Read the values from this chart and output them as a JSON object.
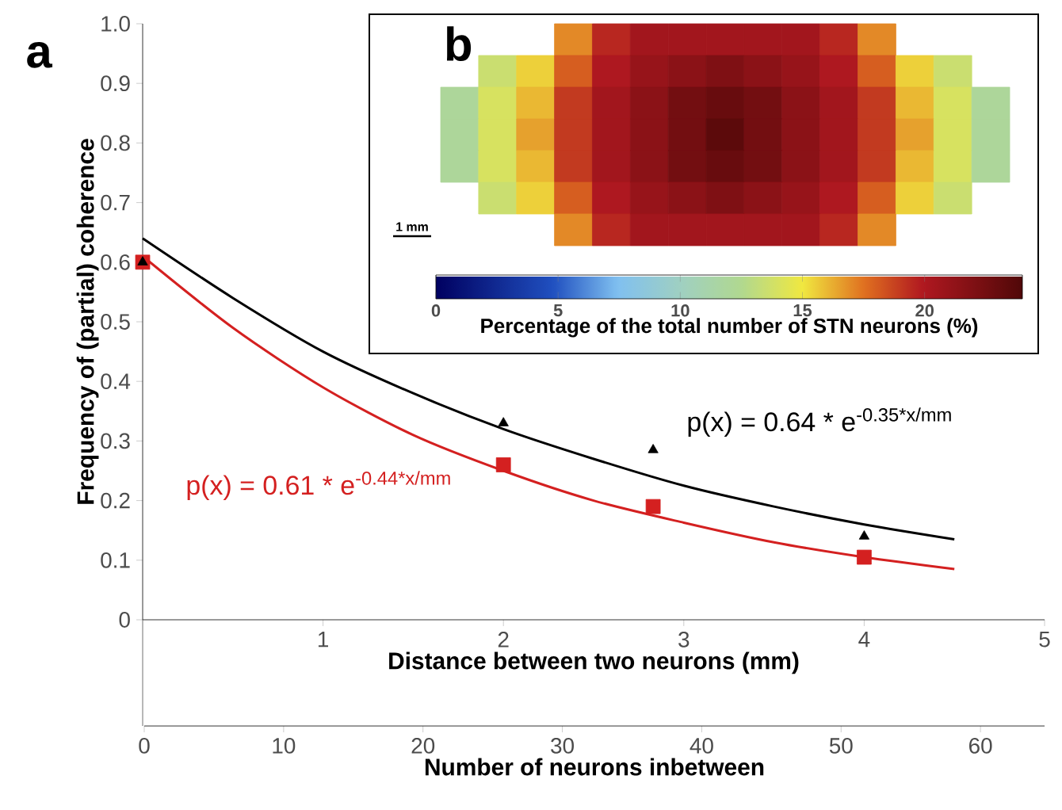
{
  "chart_data": [
    {
      "type": "line",
      "title": "a",
      "xlabel": "Distance between two neurons (mm)",
      "ylabel": "Frequency of (partial) coherence",
      "x2label": "Number of  neurons inbetween",
      "xlim": [
        0,
        5
      ],
      "xticks": [
        1,
        2,
        3,
        4,
        5
      ],
      "ylim": [
        0,
        1
      ],
      "yticks": [
        {
          "value": 0,
          "label": "0"
        },
        0.1,
        0.2,
        0.3,
        0.4,
        0.5,
        0.6,
        0.7,
        0.8,
        0.9,
        {
          "value": 1,
          "label": "1.0"
        }
      ],
      "x2lim": [
        0,
        64.6
      ],
      "x2ticks": [
        0,
        10,
        20,
        30,
        40,
        50,
        60
      ],
      "series": [
        {
          "type": "line",
          "color": "#000000",
          "marker": "none",
          "x": [
            0,
            0.5,
            1,
            1.5,
            2,
            2.5,
            3,
            3.5,
            4,
            4.5
          ],
          "values": [
            0.64,
            0.54,
            0.45,
            0.38,
            0.32,
            0.27,
            0.225,
            0.19,
            0.16,
            0.135
          ]
        },
        {
          "type": "line",
          "color": "#d42020",
          "marker": "none",
          "x": [
            0,
            0.5,
            1,
            1.5,
            2,
            2.5,
            3,
            3.5,
            4,
            4.5
          ],
          "values": [
            0.61,
            0.49,
            0.39,
            0.31,
            0.25,
            0.2,
            0.163,
            0.13,
            0.105,
            0.085
          ]
        },
        {
          "type": "scatter",
          "color": "#d42020",
          "marker": "square",
          "x": [
            0,
            2,
            2.83,
            4
          ],
          "values": [
            0.6,
            0.26,
            0.19,
            0.105
          ]
        },
        {
          "type": "scatter",
          "color": "#000000",
          "marker": "triangle",
          "x": [
            0,
            2,
            2.83,
            4
          ],
          "values": [
            0.6,
            0.33,
            0.285,
            0.14
          ]
        }
      ],
      "annotations": [
        "p(x) = 0.64 * e$^{-0.35*x/mm}$",
        "p(x) = 0.61 * e$^{-0.44*x/mm}$"
      ]
    },
    {
      "type": "heatmap",
      "title": "b",
      "clabel": "Percentage of the total number of STN neurons (%)",
      "tick_labels": false,
      "categories": [
        null,
        null,
        null,
        null,
        null,
        null,
        null,
        null,
        null,
        null,
        null,
        null,
        null,
        null,
        null
      ],
      "y_categories": [
        null,
        null,
        null,
        null,
        null,
        null,
        null
      ],
      "cells": [
        [
          null,
          null,
          null,
          17,
          19.5,
          20.5,
          20.5,
          20.5,
          20.5,
          20.5,
          19.5,
          17,
          null,
          null,
          null
        ],
        [
          null,
          13.5,
          15.5,
          18,
          20,
          21,
          21.5,
          22,
          21.5,
          21,
          20,
          18,
          15.5,
          13.5,
          null
        ],
        [
          12,
          14,
          16,
          19,
          20.5,
          21.5,
          22.5,
          23,
          22.5,
          21.5,
          20.5,
          19,
          16,
          14,
          12
        ],
        [
          12,
          14,
          16.5,
          19,
          20.5,
          21.5,
          22.5,
          23.5,
          22.5,
          21.5,
          20.5,
          19,
          16.5,
          14,
          12
        ],
        [
          12,
          14,
          16,
          19,
          20.5,
          21.5,
          22.5,
          23,
          22.5,
          21.5,
          20.5,
          19,
          16,
          14,
          12
        ],
        [
          null,
          13.5,
          15.5,
          18,
          20,
          21,
          21.5,
          22,
          21.5,
          21,
          20,
          18,
          15.5,
          13.5,
          null
        ],
        [
          null,
          null,
          null,
          17,
          19.5,
          20.5,
          20.5,
          20.5,
          20.5,
          20.5,
          19.5,
          17,
          null,
          null,
          null
        ]
      ],
      "clim": [
        0,
        24
      ],
      "cticks": [
        0,
        5,
        10,
        15,
        20
      ],
      "annotations": [
        "1 mm"
      ]
    }
  ]
}
